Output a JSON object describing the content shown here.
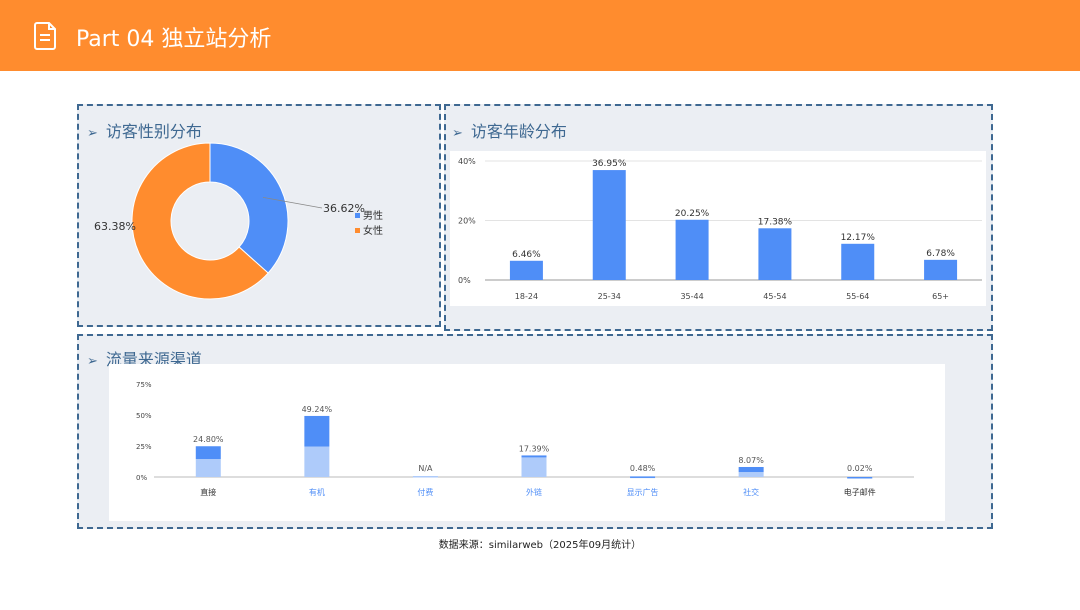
{
  "header": {
    "title": "Part 04 独立站分析",
    "icon": "document-icon",
    "bg_color": "#FF8C2E"
  },
  "panels": {
    "gender": {
      "title": "访客性别分布",
      "arrow": "➢"
    },
    "age": {
      "title": "访客年龄分布",
      "arrow": "➢"
    },
    "traffic": {
      "title": "流量来源渠道",
      "arrow": "➢"
    }
  },
  "footer": {
    "source": "数据来源：similarweb（2025年09月统计）"
  },
  "chart_data": [
    {
      "id": "gender",
      "type": "pie",
      "donut": true,
      "slices": [
        {
          "label": "男性",
          "value": 36.62,
          "display": "36.62%",
          "color": "#4F8EF7"
        },
        {
          "label": "女性",
          "value": 63.38,
          "display": "63.38%",
          "color": "#FF8C2E"
        }
      ],
      "legend": "right"
    },
    {
      "id": "age",
      "type": "bar",
      "categories": [
        "18-24",
        "25-34",
        "35-44",
        "45-54",
        "55-64",
        "65+"
      ],
      "values": [
        6.46,
        36.95,
        20.25,
        17.38,
        12.17,
        6.78
      ],
      "labels": [
        "6.46%",
        "36.95%",
        "20.25%",
        "17.38%",
        "12.17%",
        "6.78%"
      ],
      "yticks": [
        "0%",
        "20%",
        "40%"
      ],
      "ytick_values": [
        0,
        20,
        40
      ],
      "ylim": [
        0,
        40
      ],
      "color": "#4F8EF7",
      "grid": true
    },
    {
      "id": "traffic",
      "type": "bar",
      "stacked": true,
      "categories": [
        "直接",
        "有机",
        "付费",
        "外链",
        "显示广告",
        "社交",
        "电子邮件"
      ],
      "labels": [
        "24.80%",
        "49.24%",
        "N/A",
        "17.39%",
        "0.48%",
        "8.07%",
        "0.02%"
      ],
      "series": [
        {
          "values": [
            14.5,
            24.6,
            0.8,
            15.8,
            0.3,
            4.0,
            0.01
          ],
          "color": "#AECBFA"
        },
        {
          "values": [
            10.3,
            24.64,
            0,
            1.59,
            0.18,
            4.07,
            0.01
          ],
          "color": "#4F8EF7"
        }
      ],
      "category_colors": [
        "#333333",
        "#4F8EF7",
        "#4F8EF7",
        "#4F8EF7",
        "#4F8EF7",
        "#4F8EF7",
        "#333333"
      ],
      "yticks": [
        "0%",
        "25%",
        "50%",
        "75%"
      ],
      "ytick_values": [
        0,
        25,
        50,
        75
      ],
      "ylim": [
        0,
        75
      ],
      "grid": false
    }
  ]
}
